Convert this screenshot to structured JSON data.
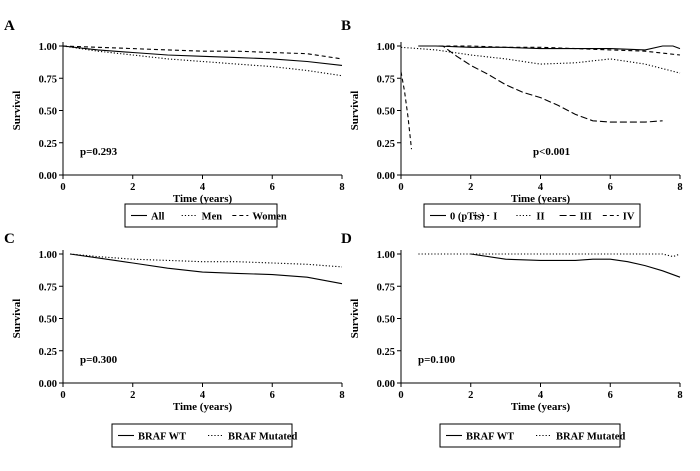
{
  "chart_data": [
    {
      "type": "line",
      "panel_label": "A",
      "xlabel": "Time (years)",
      "ylabel": "Survival",
      "xlim": [
        0,
        8
      ],
      "ylim": [
        0,
        1
      ],
      "xticks": [
        "0",
        "2",
        "4",
        "6",
        "8"
      ],
      "yticks": [
        "0.00",
        "0.25",
        "0.50",
        "0.75",
        "1.00"
      ],
      "annotation": "p=0.293",
      "legend_position": "below",
      "series": [
        {
          "name": "All",
          "dash": "solid",
          "x": [
            0,
            1,
            2,
            3,
            4,
            5,
            6,
            7,
            8
          ],
          "y": [
            1.0,
            0.97,
            0.95,
            0.93,
            0.92,
            0.91,
            0.9,
            0.88,
            0.85
          ]
        },
        {
          "name": "Men",
          "dash": "dotted",
          "x": [
            0,
            1,
            2,
            3,
            4,
            5,
            6,
            7,
            8
          ],
          "y": [
            1.0,
            0.96,
            0.93,
            0.9,
            0.88,
            0.86,
            0.84,
            0.81,
            0.77
          ]
        },
        {
          "name": "Women",
          "dash": "dashed",
          "x": [
            0,
            1,
            2,
            3,
            4,
            5,
            6,
            7,
            8
          ],
          "y": [
            1.0,
            0.99,
            0.98,
            0.97,
            0.96,
            0.96,
            0.95,
            0.94,
            0.9
          ]
        }
      ]
    },
    {
      "type": "line",
      "panel_label": "B",
      "xlabel": "Time (years)",
      "ylabel": "Survival",
      "xlim": [
        0,
        8
      ],
      "ylim": [
        0,
        1
      ],
      "xticks": [
        "0",
        "2",
        "4",
        "6",
        "8"
      ],
      "yticks": [
        "0.00",
        "0.25",
        "0.50",
        "0.75",
        "1.00"
      ],
      "annotation": "p<0.001",
      "legend_position": "below",
      "series": [
        {
          "name": "0 (pTis)",
          "dash": "solid",
          "x": [
            0.5,
            1,
            2,
            3,
            4,
            5,
            6,
            7,
            7.5,
            7.8,
            8
          ],
          "y": [
            1.0,
            1.0,
            0.99,
            0.99,
            0.98,
            0.98,
            0.98,
            0.97,
            1.0,
            1.0,
            0.98
          ]
        },
        {
          "name": "I",
          "dash": "dashed",
          "x": [
            0.5,
            1,
            2,
            3,
            4,
            5,
            6,
            7,
            8
          ],
          "y": [
            1.0,
            1.0,
            1.0,
            0.99,
            0.99,
            0.98,
            0.97,
            0.96,
            0.93
          ]
        },
        {
          "name": "II",
          "dash": "dotted",
          "x": [
            0,
            1,
            2,
            3,
            4,
            5,
            6,
            7,
            8
          ],
          "y": [
            0.99,
            0.97,
            0.93,
            0.9,
            0.86,
            0.87,
            0.9,
            0.86,
            0.79
          ]
        },
        {
          "name": "III",
          "dash": "longdash",
          "x": [
            0.5,
            1.2,
            1.6,
            2,
            2.5,
            3,
            3.5,
            4,
            4.5,
            5,
            5.5,
            6,
            7,
            7.5
          ],
          "y": [
            1.0,
            1.0,
            0.92,
            0.85,
            0.78,
            0.7,
            0.64,
            0.6,
            0.54,
            0.47,
            0.42,
            0.41,
            0.41,
            0.42
          ]
        },
        {
          "name": "IV",
          "dash": "dashed",
          "x": [
            0,
            0.1,
            0.2,
            0.3
          ],
          "y": [
            0.8,
            0.65,
            0.45,
            0.2
          ]
        }
      ]
    },
    {
      "type": "line",
      "panel_label": "C",
      "xlabel": "Time (years)",
      "ylabel": "Survival",
      "xlim": [
        0,
        8
      ],
      "ylim": [
        0,
        1
      ],
      "xticks": [
        "0",
        "2",
        "4",
        "6",
        "8"
      ],
      "yticks": [
        "0.00",
        "0.25",
        "0.50",
        "0.75",
        "1.00"
      ],
      "annotation": "p=0.300",
      "legend_position": "below",
      "series": [
        {
          "name": "BRAF WT",
          "dash": "solid",
          "x": [
            0.2,
            1,
            2,
            3,
            4,
            5,
            6,
            7,
            8
          ],
          "y": [
            1.0,
            0.97,
            0.93,
            0.89,
            0.86,
            0.85,
            0.84,
            0.82,
            0.77
          ]
        },
        {
          "name": "BRAF Mutated",
          "dash": "dotted",
          "x": [
            0.2,
            1,
            2,
            3,
            4,
            5,
            6,
            7,
            8
          ],
          "y": [
            1.0,
            0.98,
            0.96,
            0.95,
            0.94,
            0.94,
            0.93,
            0.92,
            0.9
          ]
        }
      ]
    },
    {
      "type": "line",
      "panel_label": "D",
      "xlabel": "Time (years)",
      "ylabel": "Survival",
      "xlim": [
        0,
        8
      ],
      "ylim": [
        0,
        1
      ],
      "xticks": [
        "0",
        "2",
        "4",
        "6",
        "8"
      ],
      "yticks": [
        "0.00",
        "0.25",
        "0.50",
        "0.75",
        "1.00"
      ],
      "annotation": "p=0.100",
      "legend_position": "below",
      "series": [
        {
          "name": "BRAF WT",
          "dash": "solid",
          "x": [
            2,
            3,
            4,
            5,
            5.5,
            6,
            6.5,
            7,
            7.5,
            8
          ],
          "y": [
            1.0,
            0.96,
            0.95,
            0.95,
            0.96,
            0.96,
            0.94,
            0.91,
            0.87,
            0.82
          ]
        },
        {
          "name": "BRAF Mutated",
          "dash": "dotted",
          "x": [
            0.5,
            2,
            4,
            6,
            7,
            7.5,
            7.8,
            8
          ],
          "y": [
            1.0,
            1.0,
            1.0,
            1.0,
            1.0,
            1.0,
            0.98,
            1.0
          ]
        }
      ]
    }
  ]
}
